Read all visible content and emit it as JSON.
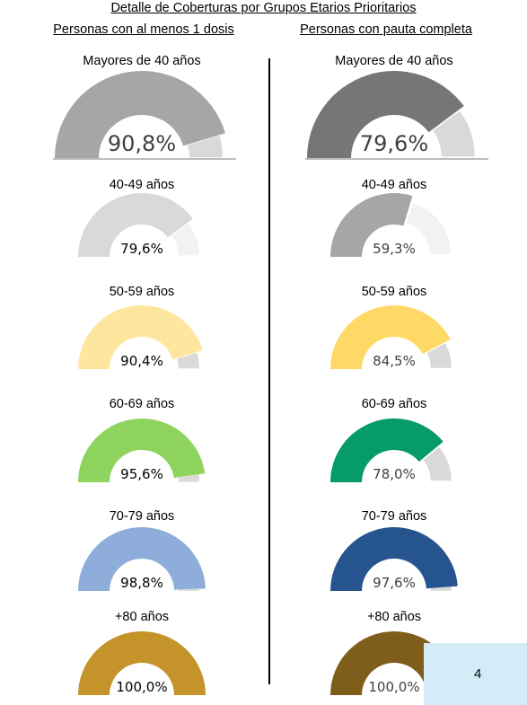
{
  "title": "Detalle de Coberturas por Grupos Etarios Prioritarios",
  "columns": {
    "left": "Personas con al menos 1 dosis",
    "right": "Personas con pauta completa"
  },
  "page_number": "4",
  "chart_data": [
    {
      "type": "gauge",
      "series": "Personas con al menos 1 dosis",
      "items": [
        {
          "label": "Mayores de 40 años",
          "value": 90.8,
          "display": "90,8%",
          "color": "#a6a6a6",
          "rest_color": "#d9d9d9"
        },
        {
          "label": "40-49 años",
          "value": 79.6,
          "display": "79,6%",
          "color": "#d9d9d9",
          "rest_color": "#f2f2f2"
        },
        {
          "label": "50-59 años",
          "value": 90.4,
          "display": "90,4%",
          "color": "#ffe69f",
          "rest_color": "#d9d9d9"
        },
        {
          "label": "60-69 años",
          "value": 95.6,
          "display": "95,6%",
          "color": "#8fd35f",
          "rest_color": "#d9d9d9"
        },
        {
          "label": "70-79 años",
          "value": 98.8,
          "display": "98,8%",
          "color": "#8fadda",
          "rest_color": "#d9d9d9"
        },
        {
          "label": "+80 años",
          "value": 100.0,
          "display": "100,0%",
          "color": "#c4932a",
          "rest_color": "#d9d9d9"
        }
      ]
    },
    {
      "type": "gauge",
      "series": "Personas con pauta completa",
      "items": [
        {
          "label": "Mayores de 40 años",
          "value": 79.6,
          "display": "79,6%",
          "color": "#767676",
          "rest_color": "#d9d9d9"
        },
        {
          "label": "40-49 años",
          "value": 59.3,
          "display": "59,3%",
          "color": "#a6a6a6",
          "rest_color": "#f2f2f2"
        },
        {
          "label": "50-59 años",
          "value": 84.5,
          "display": "84,5%",
          "color": "#ffd966",
          "rest_color": "#d9d9d9"
        },
        {
          "label": "60-69 años",
          "value": 78.0,
          "display": "78,0%",
          "color": "#079a6a",
          "rest_color": "#d9d9d9"
        },
        {
          "label": "70-79 años",
          "value": 97.6,
          "display": "97,6%",
          "color": "#25548f",
          "rest_color": "#d9d9d9"
        },
        {
          "label": "+80 años",
          "value": 100.0,
          "display": "100,0%",
          "color": "#7f5e1b",
          "rest_color": "#d9d9d9"
        }
      ]
    }
  ]
}
